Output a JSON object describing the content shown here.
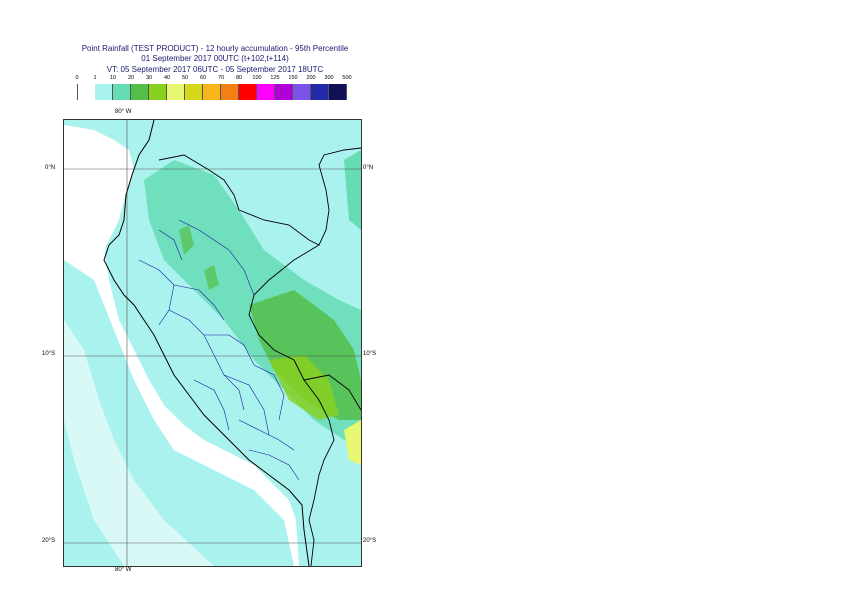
{
  "title": {
    "line1": "Point Rainfall (TEST PRODUCT) - 12 hourly accumulation - 95th Percentile",
    "line2": "01 September 2017 00UTC (t+102,t+114)",
    "line3": "VT: 05 September 2017 06UTC - 05 September 2017 18UTC"
  },
  "legend": {
    "thresholds": [
      "0",
      "1",
      "10",
      "20",
      "30",
      "40",
      "50",
      "60",
      "70",
      "80",
      "100",
      "125",
      "150",
      "200",
      "300",
      "500"
    ],
    "colors": [
      "#ffffff",
      "#aaf2ee",
      "#66dcb4",
      "#55be4a",
      "#88d11e",
      "#e7f76f",
      "#d6d61a",
      "#f6b61c",
      "#f57f13",
      "#ff0000",
      "#ff00ff",
      "#b000d8",
      "#7c52e8",
      "#2228a8",
      "#13105a"
    ]
  },
  "map": {
    "lon_labels": [
      "80° W",
      "80° W"
    ],
    "lat_labels_left": [
      "0°N",
      "10°S",
      "20°S"
    ],
    "lat_labels_right": [
      "0°N",
      "10°S",
      "20°S"
    ]
  }
}
